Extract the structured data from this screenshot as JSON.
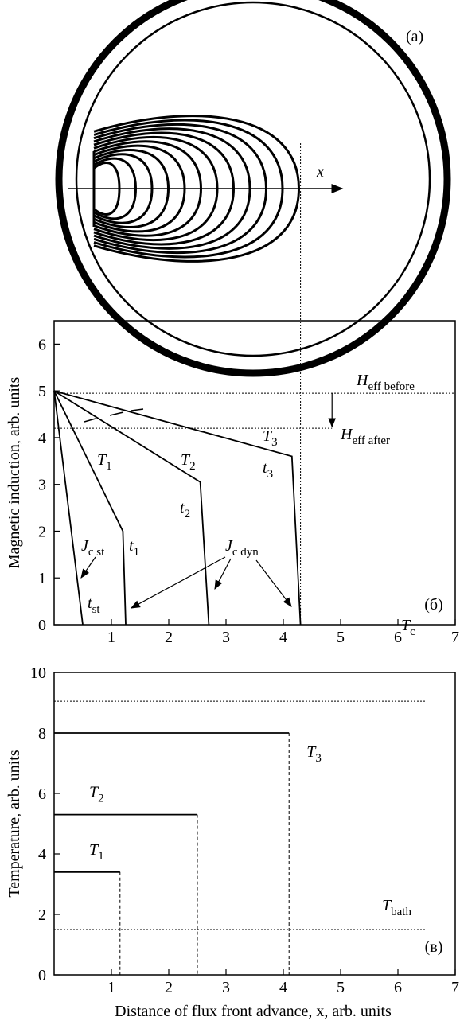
{
  "panel_a": {
    "label": "(a)",
    "axis_label": "x"
  },
  "chart_data": [
    {
      "type": "line",
      "panel_label": "(б)",
      "y_label": "Magnetic induction, arb. units",
      "xlim": [
        0,
        7
      ],
      "xticks": [
        1,
        2,
        3,
        4,
        5,
        6,
        7
      ],
      "ylim": [
        0,
        6.5
      ],
      "yticks": [
        0,
        1,
        2,
        3,
        4,
        5,
        6
      ],
      "color": "#000000",
      "front_position": 4.3,
      "series": [
        {
          "x": [
            0,
            0.5
          ],
          "values": [
            5,
            0
          ]
        },
        {
          "x": [
            0,
            1.2,
            1.25
          ],
          "values": [
            5,
            2.0,
            0
          ]
        },
        {
          "x": [
            0,
            2.55,
            2.7
          ],
          "values": [
            5,
            3.05,
            0
          ]
        },
        {
          "x": [
            0,
            4.15,
            4.3
          ],
          "values": [
            5,
            3.6,
            0
          ]
        }
      ],
      "reference_lines": [
        {
          "value": 4.95,
          "x_extent": [
            0,
            7
          ],
          "label": {
            "main": "H",
            "sub": "eff before"
          }
        },
        {
          "value": 4.2,
          "x_extent": [
            0,
            4.85
          ],
          "label": {
            "main": "H",
            "sub": "eff after"
          }
        }
      ],
      "annotations": [
        {
          "main": "T",
          "sub": "1"
        },
        {
          "main": "T",
          "sub": "2"
        },
        {
          "main": "T",
          "sub": "3"
        },
        {
          "main": "t",
          "sub": "1"
        },
        {
          "main": "t",
          "sub": "2"
        },
        {
          "main": "t",
          "sub": "3"
        },
        {
          "main": "t",
          "sub": "st"
        },
        {
          "main": "J",
          "sub": "c st"
        },
        {
          "main": "J",
          "sub": "c dyn"
        }
      ]
    },
    {
      "type": "step",
      "panel_label": "(в)",
      "y_label": "Temperature, arb. units",
      "x_label": "Distance of flux front advance, x, arb. units",
      "xlim": [
        0,
        7
      ],
      "xticks": [
        1,
        2,
        3,
        4,
        5,
        6,
        7
      ],
      "ylim": [
        0,
        10
      ],
      "yticks": [
        0,
        2,
        4,
        6,
        8,
        10
      ],
      "color": "#000000",
      "series": [
        {
          "label": {
            "main": "T",
            "sub": "1"
          },
          "x": [
            0,
            1.15
          ],
          "values": [
            3.4,
            3.4
          ]
        },
        {
          "label": {
            "main": "T",
            "sub": "2"
          },
          "x": [
            0,
            2.5
          ],
          "values": [
            5.3,
            5.3
          ]
        },
        {
          "label": {
            "main": "T",
            "sub": "3"
          },
          "x": [
            0,
            4.1
          ],
          "values": [
            8.0,
            8.0
          ]
        }
      ],
      "reference_lines": [
        {
          "value": 9.05,
          "x_extent": [
            0,
            6.5
          ],
          "label": {
            "main": "T",
            "sub": "c"
          }
        },
        {
          "value": 1.5,
          "x_extent": [
            0,
            6.5
          ],
          "label": {
            "main": "T",
            "sub": "bath"
          }
        }
      ],
      "annotations": []
    }
  ]
}
